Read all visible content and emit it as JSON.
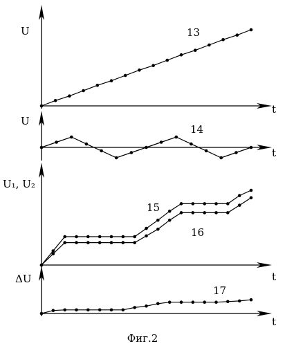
{
  "caption": "Фиг.2",
  "colors": {
    "ink": "#000000",
    "background": "#ffffff"
  },
  "panels": [
    {
      "y_label": "U",
      "x_label": "t",
      "curves": [
        {
          "label": "13",
          "points": [
            [
              0,
              0
            ],
            [
              1,
              0.07
            ],
            [
              2,
              0.13
            ],
            [
              3,
              0.2
            ],
            [
              4,
              0.27
            ],
            [
              5,
              0.33
            ],
            [
              6,
              0.4
            ],
            [
              7,
              0.47
            ],
            [
              8,
              0.53
            ],
            [
              9,
              0.6
            ],
            [
              10,
              0.67
            ],
            [
              11,
              0.73
            ],
            [
              12,
              0.8
            ],
            [
              13,
              0.87
            ],
            [
              14,
              0.93
            ],
            [
              15,
              1.0
            ]
          ]
        }
      ]
    },
    {
      "y_label": "U",
      "x_label": "t",
      "curves": [
        {
          "label": "14",
          "points": [
            [
              0,
              0
            ],
            [
              1,
              0.5
            ],
            [
              2,
              1
            ],
            [
              3,
              0.33
            ],
            [
              4,
              -0.33
            ],
            [
              5,
              -1
            ],
            [
              6,
              -0.5
            ],
            [
              7,
              0
            ],
            [
              8,
              0.5
            ],
            [
              9,
              1
            ],
            [
              10,
              0.33
            ],
            [
              11,
              -0.33
            ],
            [
              12,
              -1
            ],
            [
              13,
              -0.5
            ],
            [
              14,
              0
            ]
          ]
        }
      ]
    },
    {
      "y_label": "U₁, U₂",
      "x_label": "t",
      "curves": [
        {
          "label": "15",
          "points": [
            [
              0,
              0
            ],
            [
              0.85,
              0.19
            ],
            [
              1.7,
              0.38
            ],
            [
              2.55,
              0.38
            ],
            [
              3.4,
              0.38
            ],
            [
              4.25,
              0.38
            ],
            [
              5.1,
              0.38
            ],
            [
              5.95,
              0.38
            ],
            [
              6.8,
              0.38
            ],
            [
              7.65,
              0.49
            ],
            [
              8.5,
              0.6
            ],
            [
              9.35,
              0.72
            ],
            [
              10.2,
              0.82
            ],
            [
              11.05,
              0.82
            ],
            [
              11.9,
              0.82
            ],
            [
              12.75,
              0.82
            ],
            [
              13.6,
              0.82
            ],
            [
              14.45,
              0.93
            ],
            [
              15.3,
              1.0
            ]
          ]
        },
        {
          "label": "16",
          "points": [
            [
              0,
              0
            ],
            [
              0.85,
              0.15
            ],
            [
              1.7,
              0.3
            ],
            [
              2.55,
              0.3
            ],
            [
              3.4,
              0.3
            ],
            [
              4.25,
              0.3
            ],
            [
              5.1,
              0.3
            ],
            [
              5.95,
              0.3
            ],
            [
              6.8,
              0.3
            ],
            [
              7.65,
              0.39
            ],
            [
              8.5,
              0.48
            ],
            [
              9.35,
              0.6
            ],
            [
              10.2,
              0.7
            ],
            [
              11.05,
              0.7
            ],
            [
              11.9,
              0.7
            ],
            [
              12.75,
              0.7
            ],
            [
              13.6,
              0.7
            ],
            [
              14.45,
              0.8
            ],
            [
              15.3,
              0.9
            ]
          ]
        }
      ]
    },
    {
      "y_label": "ΔU",
      "x_label": "t",
      "curves": [
        {
          "label": "17",
          "points": [
            [
              0,
              0
            ],
            [
              1,
              0.1
            ],
            [
              2,
              0.12
            ],
            [
              3,
              0.12
            ],
            [
              4,
              0.12
            ],
            [
              5,
              0.12
            ],
            [
              6,
              0.12
            ],
            [
              7,
              0.12
            ],
            [
              8,
              0.2
            ],
            [
              9,
              0.25
            ],
            [
              10,
              0.33
            ],
            [
              11,
              0.38
            ],
            [
              12,
              0.38
            ],
            [
              13,
              0.38
            ],
            [
              14,
              0.38
            ],
            [
              15,
              0.38
            ],
            [
              16,
              0.4
            ],
            [
              17,
              0.42
            ],
            [
              18,
              0.46
            ]
          ]
        }
      ]
    }
  ]
}
